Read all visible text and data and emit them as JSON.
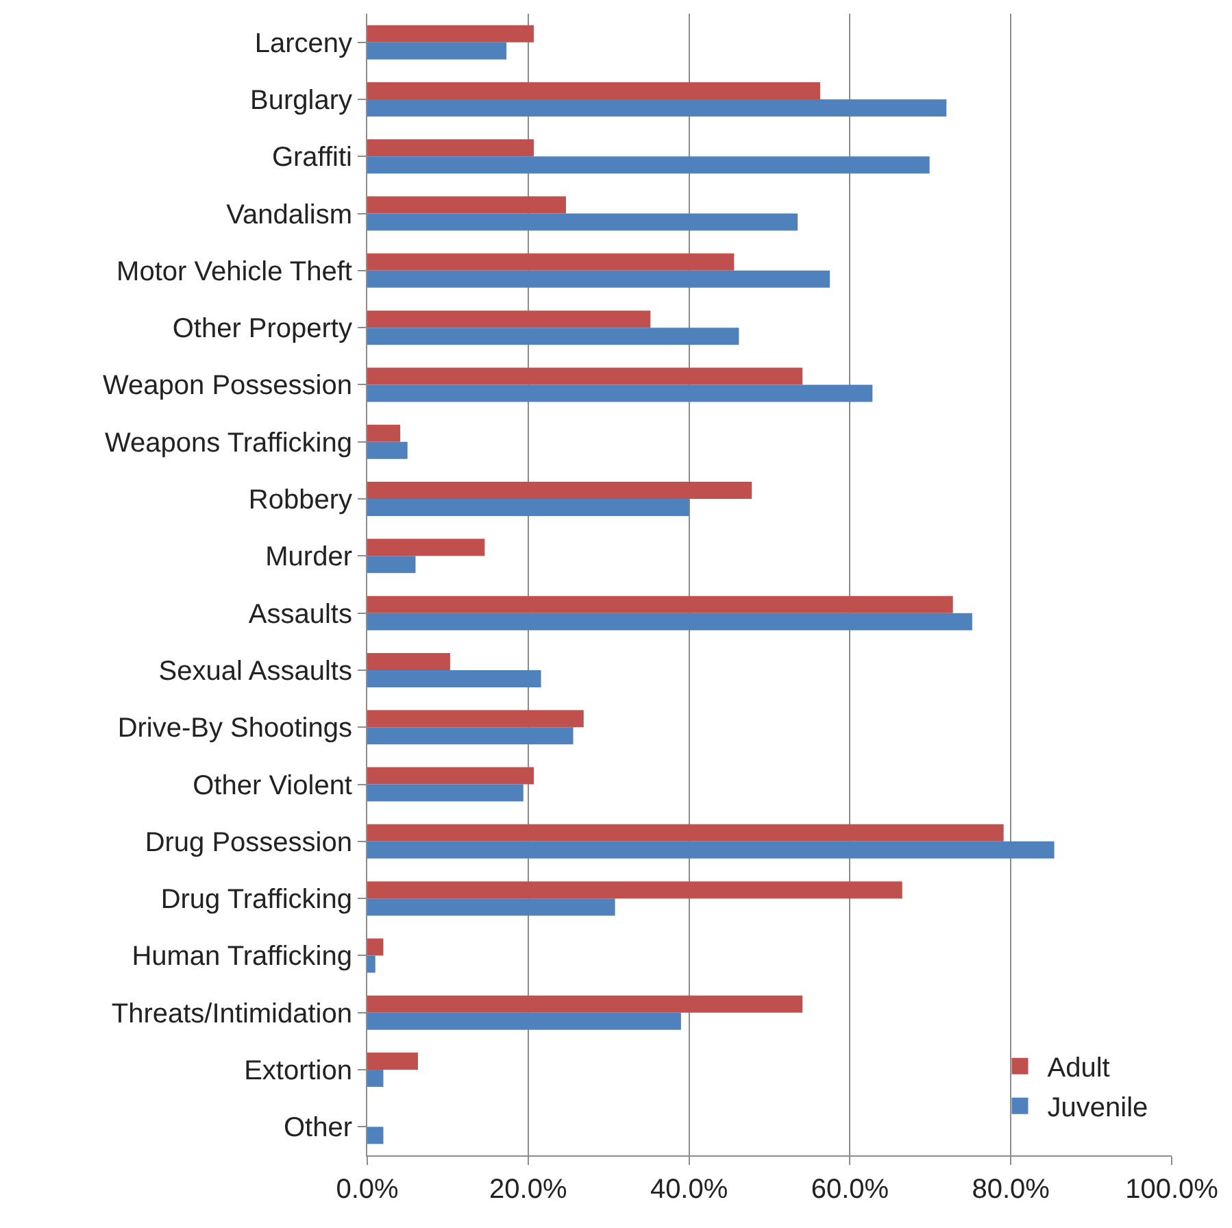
{
  "chart_data": {
    "type": "bar",
    "orientation": "horizontal",
    "categories": [
      "Larceny",
      "Burglary",
      "Graffiti",
      "Vandalism",
      "Motor Vehicle Theft",
      "Other Property",
      "Weapon Possession",
      "Weapons Trafficking",
      "Robbery",
      "Murder",
      "Assaults",
      "Sexual Assaults",
      "Drive-By Shootings",
      "Other Violent",
      "Drug Possession",
      "Drug Trafficking",
      "Human Trafficking",
      "Threats/Intimidation",
      "Extortion",
      "Other"
    ],
    "series": [
      {
        "name": "Adult",
        "color": "#c0504d",
        "values": [
          20.7,
          56.3,
          20.7,
          24.7,
          45.6,
          35.2,
          54.1,
          4.1,
          47.8,
          14.6,
          72.8,
          10.3,
          26.9,
          20.7,
          79.1,
          66.5,
          2.0,
          54.1,
          6.3,
          0
        ]
      },
      {
        "name": "Juvenile",
        "color": "#4f81bd",
        "values": [
          17.3,
          72.0,
          69.9,
          53.5,
          57.5,
          46.2,
          62.8,
          5.0,
          40.0,
          6.0,
          75.2,
          21.6,
          25.6,
          19.4,
          85.4,
          30.8,
          1.0,
          39.0,
          2.0,
          2.0
        ]
      }
    ],
    "xlim": [
      0,
      100
    ],
    "xticks": [
      {
        "value": 0,
        "label": "0.0%"
      },
      {
        "value": 20,
        "label": "20.0%"
      },
      {
        "value": 40,
        "label": "40.0%"
      },
      {
        "value": 60,
        "label": "60.0%"
      },
      {
        "value": 80,
        "label": "80.0%"
      },
      {
        "value": 100,
        "label": "100.0%"
      }
    ],
    "grid": "x",
    "legend": "bottom right"
  }
}
